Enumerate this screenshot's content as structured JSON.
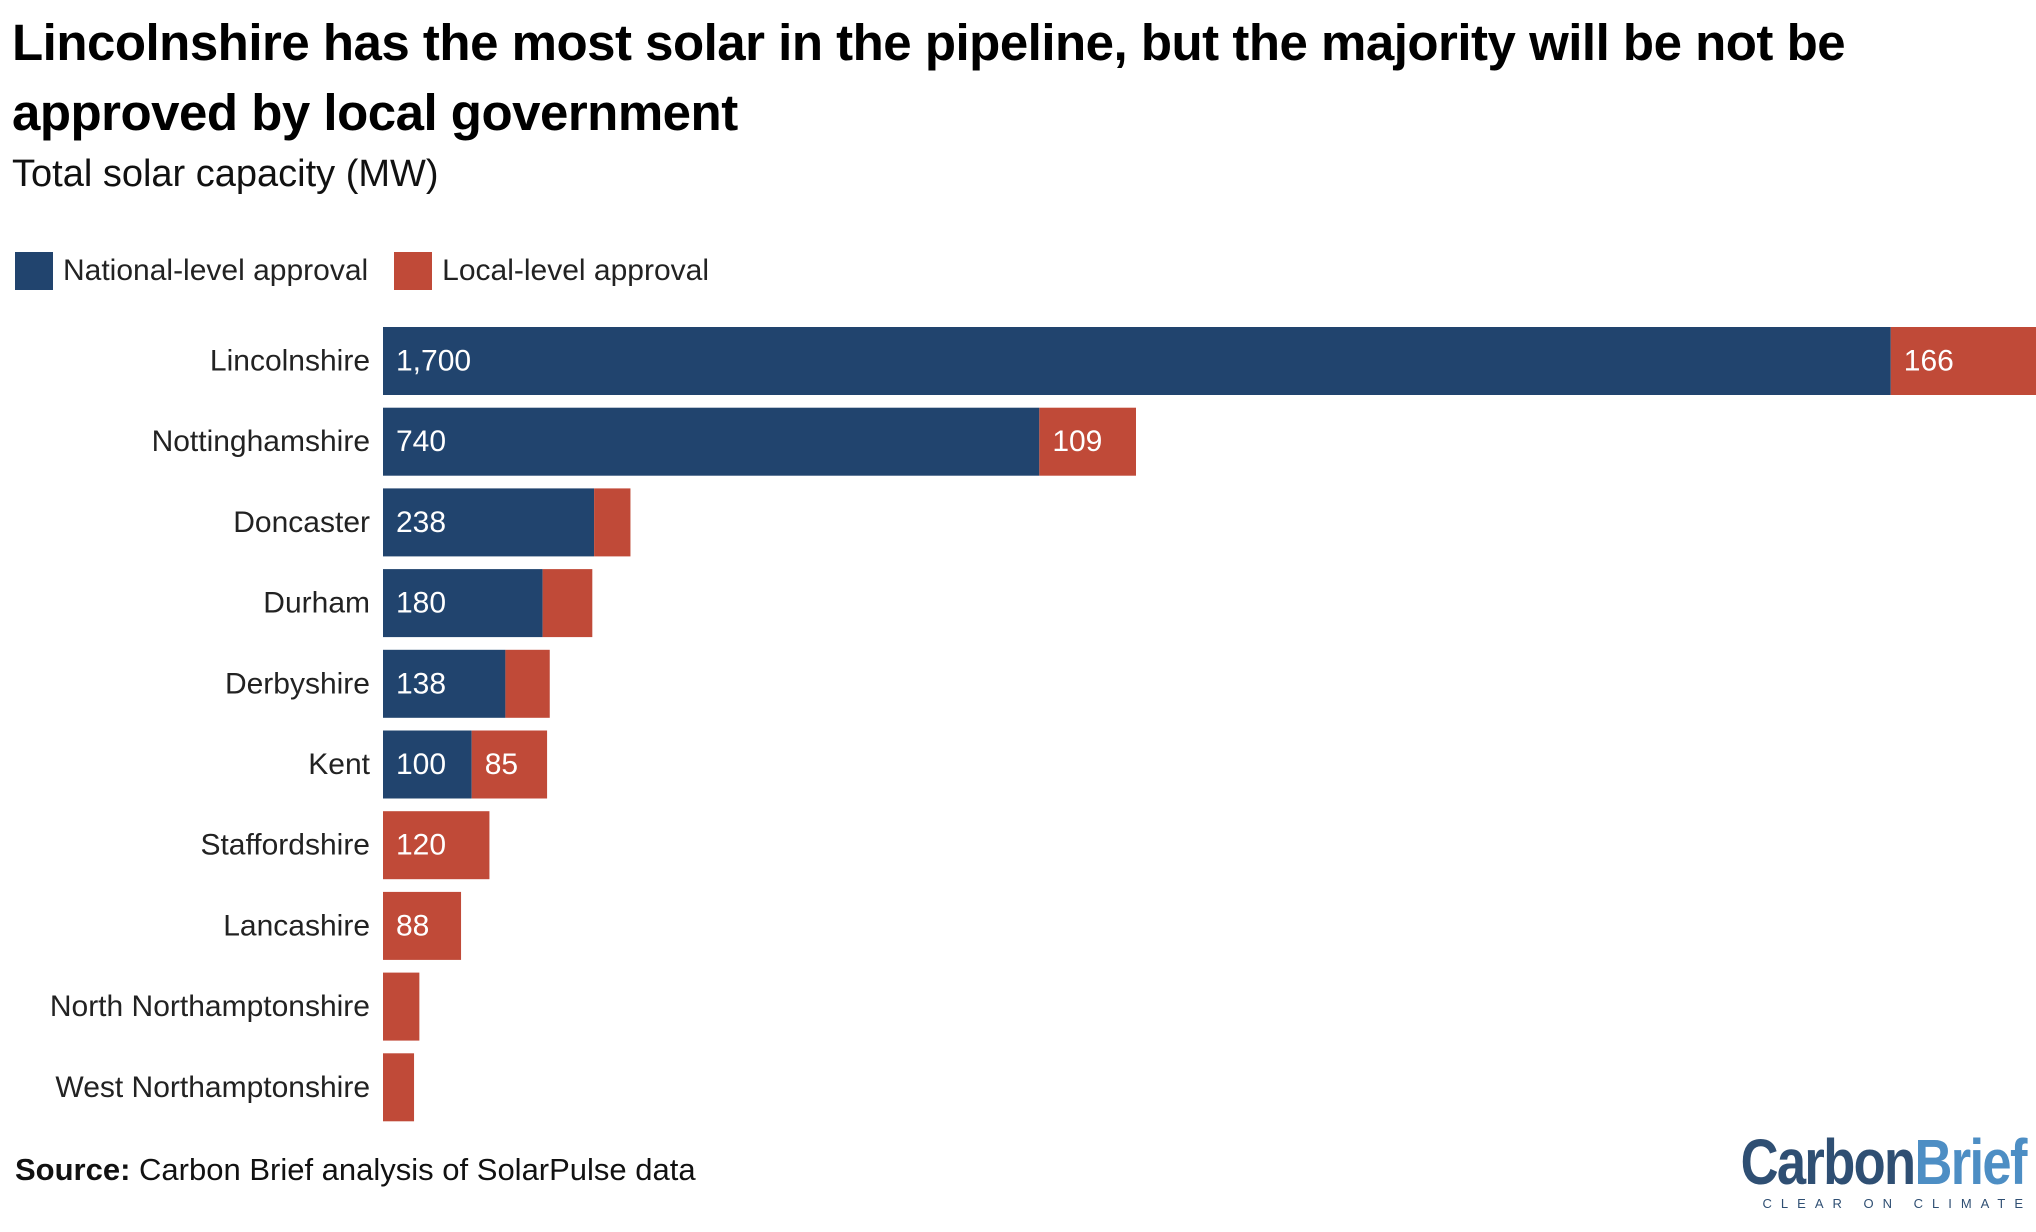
{
  "header": {
    "title": "Lincolnshire has the most solar in the pipeline, but the majority will be not be approved by local government",
    "subtitle": "Total solar capacity (MW)"
  },
  "legend": {
    "national": "National-level approval",
    "local": "Local-level approval"
  },
  "colors": {
    "national": "#21446e",
    "local": "#c04a38"
  },
  "footer": {
    "source_label": "Source:",
    "source_text": "Carbon Brief analysis of SolarPulse data"
  },
  "logo": {
    "carbon": "Carbon",
    "brief": "Brief",
    "tagline": "CLEAR ON CLIMATE"
  },
  "chart_data": {
    "type": "bar",
    "orientation": "horizontal",
    "stacked": true,
    "title": "Lincolnshire has the most solar in the pipeline, but the majority will be not be approved by local government",
    "subtitle": "Total solar capacity (MW)",
    "xlabel": "",
    "ylabel": "",
    "legend_position": "top-left",
    "grid": false,
    "xlim": [
      0,
      1866
    ],
    "categories": [
      "Lincolnshire",
      "Nottinghamshire",
      "Doncaster",
      "Durham",
      "Derbyshire",
      "Kent",
      "Staffordshire",
      "Lancashire",
      "North Northamptonshire",
      "West Northamptonshire"
    ],
    "series": [
      {
        "name": "National-level approval",
        "values": [
          1700,
          740,
          238,
          180,
          138,
          100,
          0,
          0,
          0,
          0
        ],
        "labels": [
          "1,700",
          "740",
          "238",
          "180",
          "138",
          "100",
          "",
          "",
          "",
          ""
        ]
      },
      {
        "name": "Local-level approval",
        "values": [
          166,
          109,
          41,
          56,
          50,
          85,
          120,
          88,
          41,
          35
        ],
        "labels": [
          "166",
          "109",
          "",
          "",
          "",
          "85",
          "120",
          "88",
          "",
          ""
        ]
      }
    ]
  }
}
